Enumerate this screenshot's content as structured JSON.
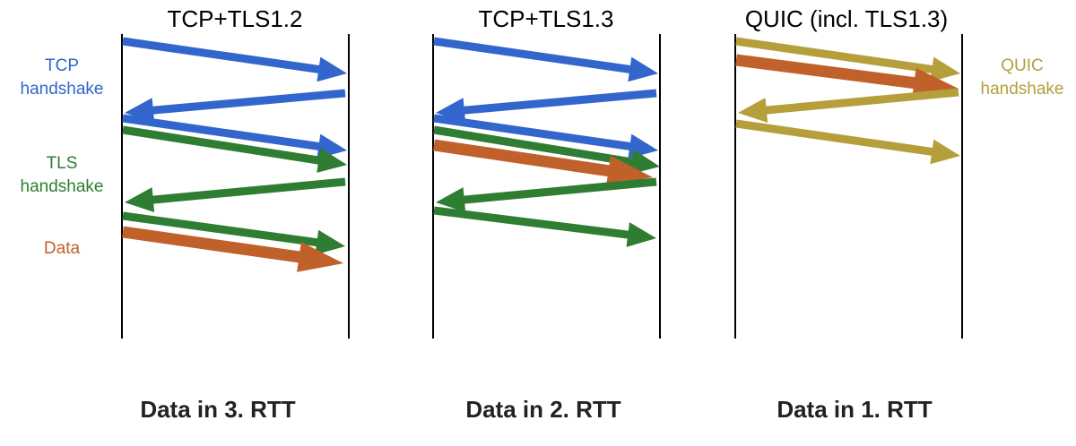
{
  "colors": {
    "tcp": "#3366CC",
    "tls": "#2E7D32",
    "data": "#C0612B",
    "quic": "#B59F3B",
    "line": "#000000"
  },
  "panels": [
    {
      "title": "TCP+TLS1.2",
      "caption": "Data in 3. RTT",
      "arrows": [
        {
          "kind": "tcp"
        },
        {
          "kind": "tcp"
        },
        {
          "kind": "tcp"
        },
        {
          "kind": "tls"
        },
        {
          "kind": "tls"
        },
        {
          "kind": "tls"
        },
        {
          "kind": "data"
        }
      ]
    },
    {
      "title": "TCP+TLS1.3",
      "caption": "Data in 2. RTT",
      "arrows": [
        {
          "kind": "tcp"
        },
        {
          "kind": "tcp"
        },
        {
          "kind": "tcp"
        },
        {
          "kind": "tls"
        },
        {
          "kind": "data"
        },
        {
          "kind": "tls"
        },
        {
          "kind": "tls"
        }
      ]
    },
    {
      "title": "QUIC (incl. TLS1.3)",
      "caption": "Data in 1. RTT",
      "arrows": [
        {
          "kind": "quic"
        },
        {
          "kind": "data"
        },
        {
          "kind": "quic"
        },
        {
          "kind": "quic"
        }
      ]
    }
  ],
  "legend": {
    "tcp": [
      "TCP",
      "handshake"
    ],
    "tls": [
      "TLS",
      "handshake"
    ],
    "data": [
      "Data"
    ],
    "quic": [
      "QUIC",
      "handshake"
    ]
  }
}
